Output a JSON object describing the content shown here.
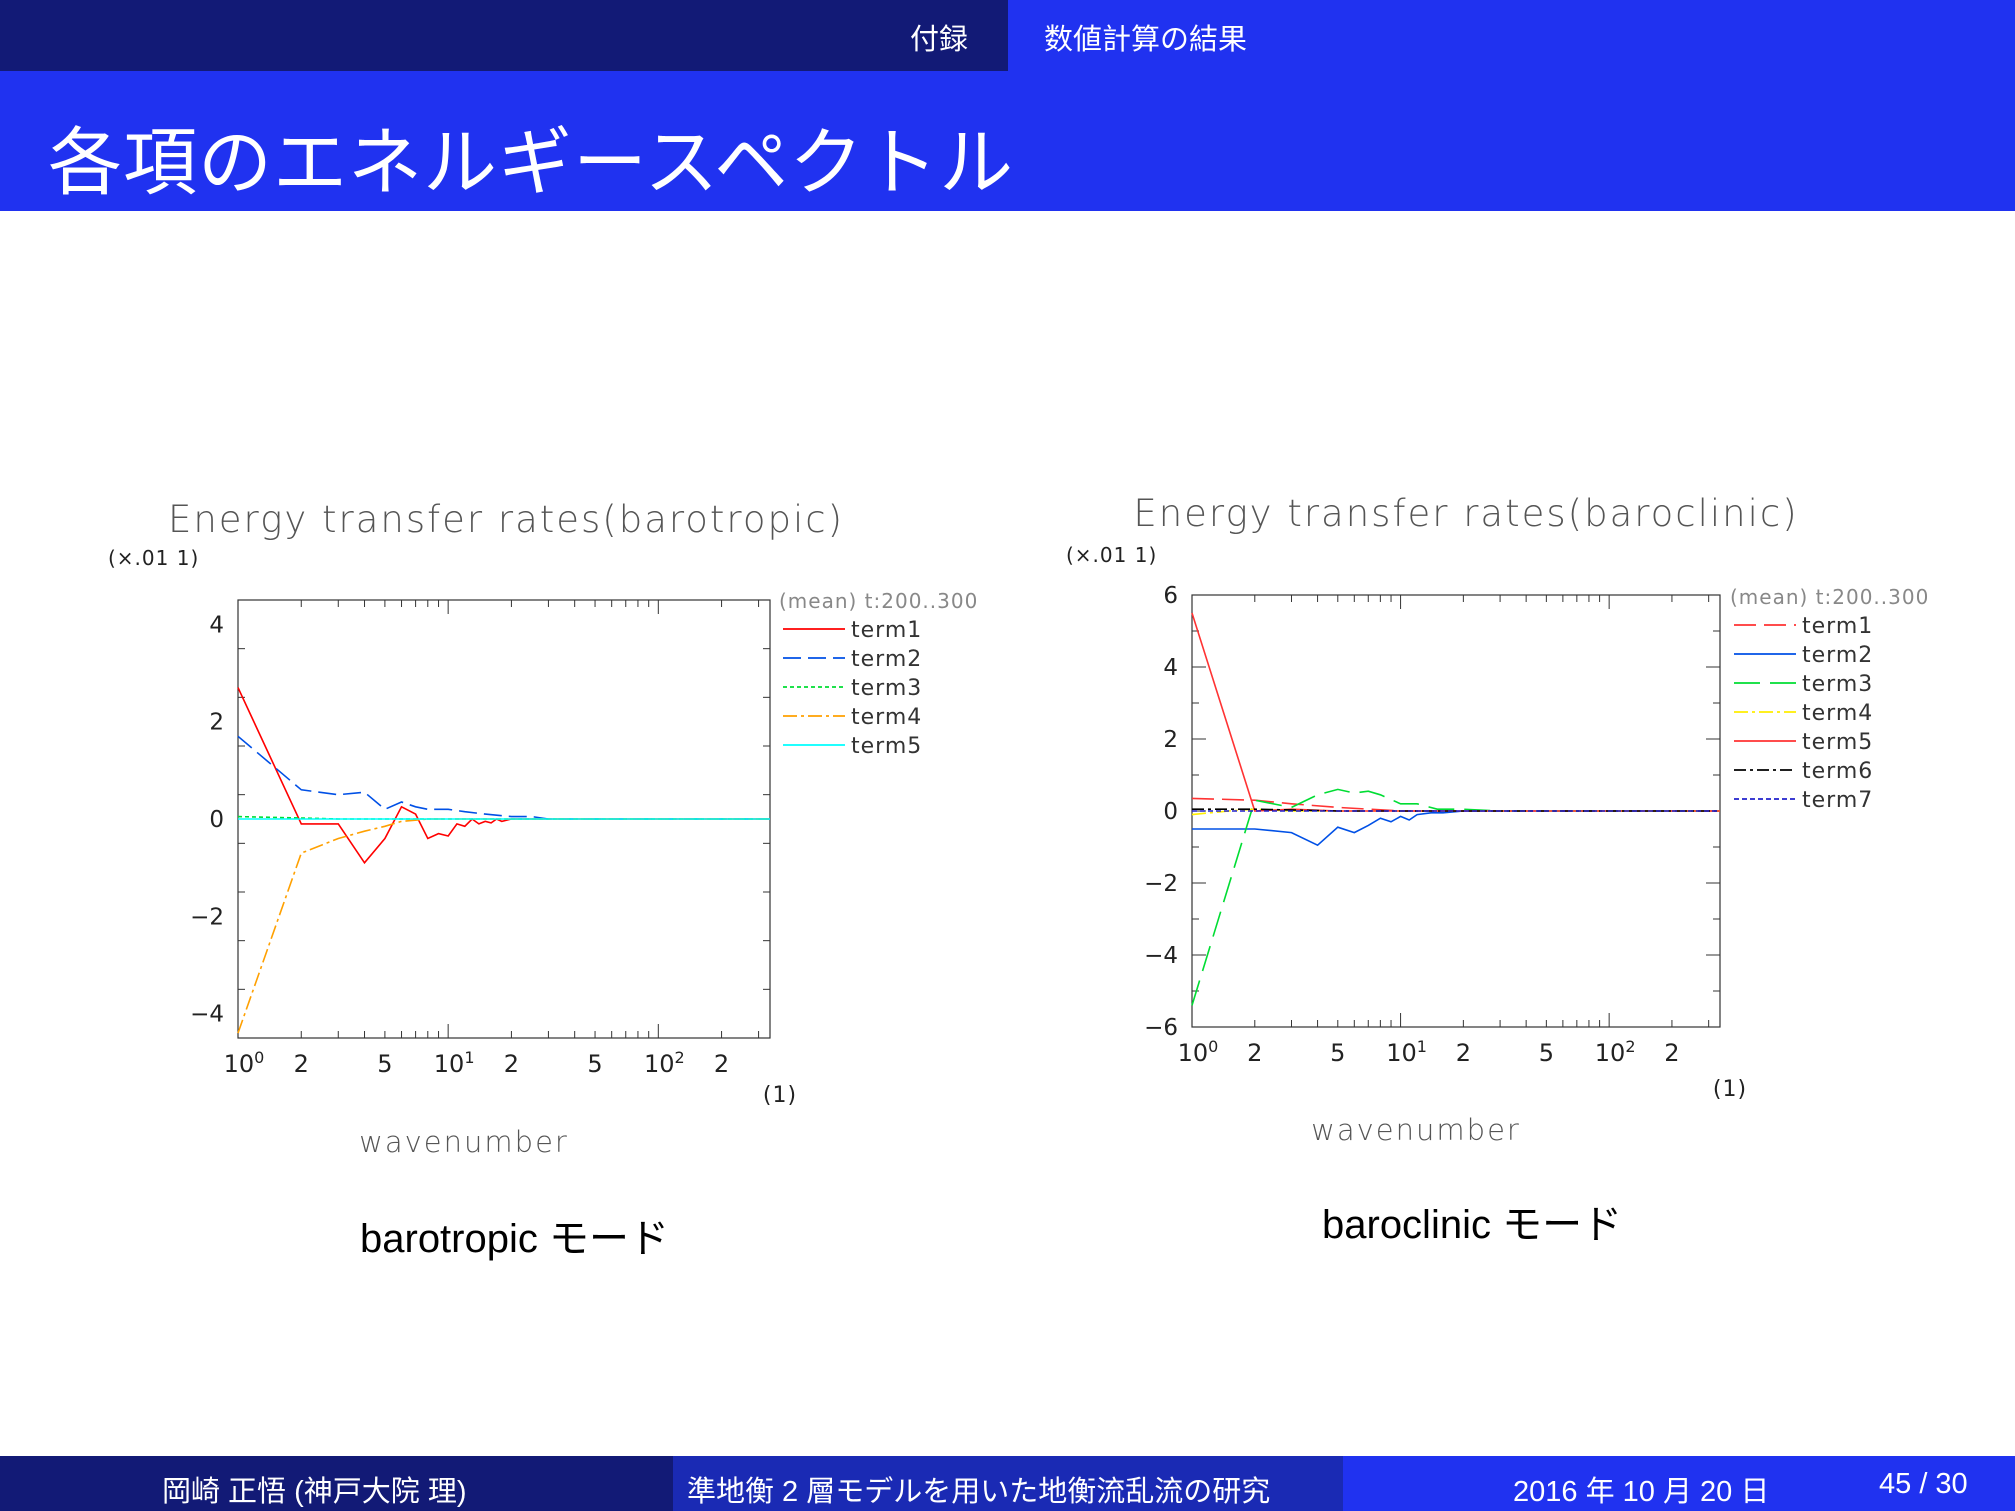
{
  "header": {
    "section_left": "付録",
    "section_right": "数値計算の結果",
    "title": "各項のエネルギースペクトル"
  },
  "footer": {
    "author": "岡崎 正悟 (神戸大院 理)",
    "talk_title": "準地衡 2 層モデルを用いた地衡流乱流の研究",
    "date": "2016 年 10 月 20 日",
    "page": "45 / 30"
  },
  "figures": [
    {
      "caption": "barotropic モード"
    },
    {
      "caption": "baroclinic モード"
    }
  ],
  "chart_data": [
    {
      "type": "line",
      "title": "Energy transfer rates(barotropic)",
      "y_scale_note": "(×.01 1)",
      "xlabel": "wavenumber",
      "xunit": "(1)",
      "xscale": "log",
      "xlim": [
        1,
        340
      ],
      "ylim": [
        -4.5,
        4.5
      ],
      "y_ticks": [
        "4",
        "2",
        "0",
        "−2",
        "−4"
      ],
      "y_tick_values": [
        4,
        2,
        0,
        -2,
        -4
      ],
      "x_ticks": [
        {
          "v": 1,
          "base": "10",
          "exp": "0"
        },
        {
          "v": 2,
          "base": "2",
          "exp": ""
        },
        {
          "v": 5,
          "base": "5",
          "exp": ""
        },
        {
          "v": 10,
          "base": "10",
          "exp": "1"
        },
        {
          "v": 20,
          "base": "2",
          "exp": ""
        },
        {
          "v": 50,
          "base": "5",
          "exp": ""
        },
        {
          "v": 100,
          "base": "10",
          "exp": "2"
        },
        {
          "v": 200,
          "base": "2",
          "exp": ""
        }
      ],
      "legend_header": "(mean) t:200..300",
      "legend_position": "right",
      "series": [
        {
          "name": "term1",
          "color": "#ff0000",
          "dash": "none",
          "x": [
            1,
            2,
            3,
            4,
            5,
            6,
            7,
            8,
            9,
            10,
            11,
            12,
            13,
            14,
            15,
            16,
            17,
            18,
            20,
            22,
            25,
            340
          ],
          "y": [
            2.7,
            -0.1,
            -0.1,
            -0.9,
            -0.4,
            0.25,
            0.1,
            -0.4,
            -0.3,
            -0.35,
            -0.1,
            -0.15,
            0.0,
            -0.1,
            -0.05,
            -0.08,
            0.0,
            -0.05,
            0.0,
            0.0,
            0.0,
            0.0
          ]
        },
        {
          "name": "term2",
          "color": "#0050e6",
          "dash": "18 7",
          "x": [
            1,
            2,
            3,
            4,
            5,
            6,
            7,
            8,
            10,
            12,
            15,
            20,
            25,
            30,
            340
          ],
          "y": [
            1.7,
            0.6,
            0.5,
            0.55,
            0.2,
            0.35,
            0.25,
            0.2,
            0.2,
            0.15,
            0.1,
            0.05,
            0.05,
            0.0,
            0.0
          ]
        },
        {
          "name": "term3",
          "color": "#00dd33",
          "dash": "4 3",
          "x": [
            1,
            2,
            3,
            5,
            10,
            340
          ],
          "y": [
            0.05,
            0.02,
            0.0,
            0.0,
            0.0,
            0.0
          ]
        },
        {
          "name": "term4",
          "color": "#ffa000",
          "dash": "14 4 3 4",
          "x": [
            1,
            2,
            3,
            4,
            5,
            6,
            8,
            10,
            340
          ],
          "y": [
            -4.4,
            -0.7,
            -0.4,
            -0.25,
            -0.15,
            -0.05,
            0.0,
            0.0,
            0.0
          ]
        },
        {
          "name": "term5",
          "color": "#00ffff",
          "dash": "none",
          "x": [
            1,
            340
          ],
          "y": [
            0.0,
            0.0
          ]
        }
      ]
    },
    {
      "type": "line",
      "title": "Energy transfer rates(baroclinic)",
      "y_scale_note": "(×.01 1)",
      "xlabel": "wavenumber",
      "xunit": "(1)",
      "xscale": "log",
      "xlim": [
        1,
        340
      ],
      "ylim": [
        -6,
        6
      ],
      "y_ticks": [
        "6",
        "4",
        "2",
        "0",
        "−2",
        "−4",
        "−6"
      ],
      "y_tick_values": [
        6,
        4,
        2,
        0,
        -2,
        -4,
        -6
      ],
      "x_ticks": [
        {
          "v": 1,
          "base": "10",
          "exp": "0"
        },
        {
          "v": 2,
          "base": "2",
          "exp": ""
        },
        {
          "v": 5,
          "base": "5",
          "exp": ""
        },
        {
          "v": 10,
          "base": "10",
          "exp": "1"
        },
        {
          "v": 20,
          "base": "2",
          "exp": ""
        },
        {
          "v": 50,
          "base": "5",
          "exp": ""
        },
        {
          "v": 100,
          "base": "10",
          "exp": "2"
        },
        {
          "v": 200,
          "base": "2",
          "exp": ""
        }
      ],
      "legend_header": "(mean) t:200..300",
      "legend_position": "right",
      "series": [
        {
          "name": "term1",
          "color": "#ff3333",
          "dash": "22 8",
          "x": [
            1,
            2,
            3,
            5,
            10,
            20,
            340
          ],
          "y": [
            0.35,
            0.3,
            0.2,
            0.1,
            0.0,
            0.0,
            0.0
          ]
        },
        {
          "name": "term2",
          "color": "#0050e6",
          "dash": "none",
          "x": [
            1,
            2,
            3,
            4,
            5,
            6,
            7,
            8,
            9,
            10,
            11,
            12,
            14,
            16,
            20,
            340
          ],
          "y": [
            -0.5,
            -0.5,
            -0.6,
            -0.95,
            -0.45,
            -0.6,
            -0.4,
            -0.2,
            -0.3,
            -0.15,
            -0.25,
            -0.1,
            -0.05,
            -0.05,
            0.0,
            0.0
          ]
        },
        {
          "name": "term3",
          "color": "#00dd33",
          "dash": "26 10",
          "x": [
            1,
            2,
            3,
            4,
            5,
            6,
            7,
            8,
            10,
            12,
            15,
            20,
            30,
            340
          ],
          "y": [
            -5.4,
            0.3,
            0.1,
            0.45,
            0.6,
            0.5,
            0.55,
            0.45,
            0.2,
            0.2,
            0.05,
            0.05,
            0.0,
            0.0
          ]
        },
        {
          "name": "term4",
          "color": "#ffee00",
          "dash": "14 4 3 4",
          "x": [
            1,
            1.5,
            2,
            3,
            340
          ],
          "y": [
            -0.1,
            0.0,
            0.05,
            0.0,
            0.0
          ]
        },
        {
          "name": "term5",
          "color": "#ff3333",
          "dash": "none",
          "x": [
            1,
            2,
            3,
            5,
            10,
            340
          ],
          "y": [
            5.5,
            0.0,
            0.05,
            0.0,
            0.0,
            0.0
          ]
        },
        {
          "name": "term6",
          "color": "#000000",
          "dash": "12 4 3 4",
          "x": [
            1,
            2,
            5,
            340
          ],
          "y": [
            0.05,
            0.05,
            0.0,
            0.0
          ]
        },
        {
          "name": "term7",
          "color": "#2020cc",
          "dash": "5 3",
          "x": [
            1,
            2,
            5,
            340
          ],
          "y": [
            0.0,
            0.0,
            0.0,
            0.0
          ]
        }
      ]
    }
  ]
}
